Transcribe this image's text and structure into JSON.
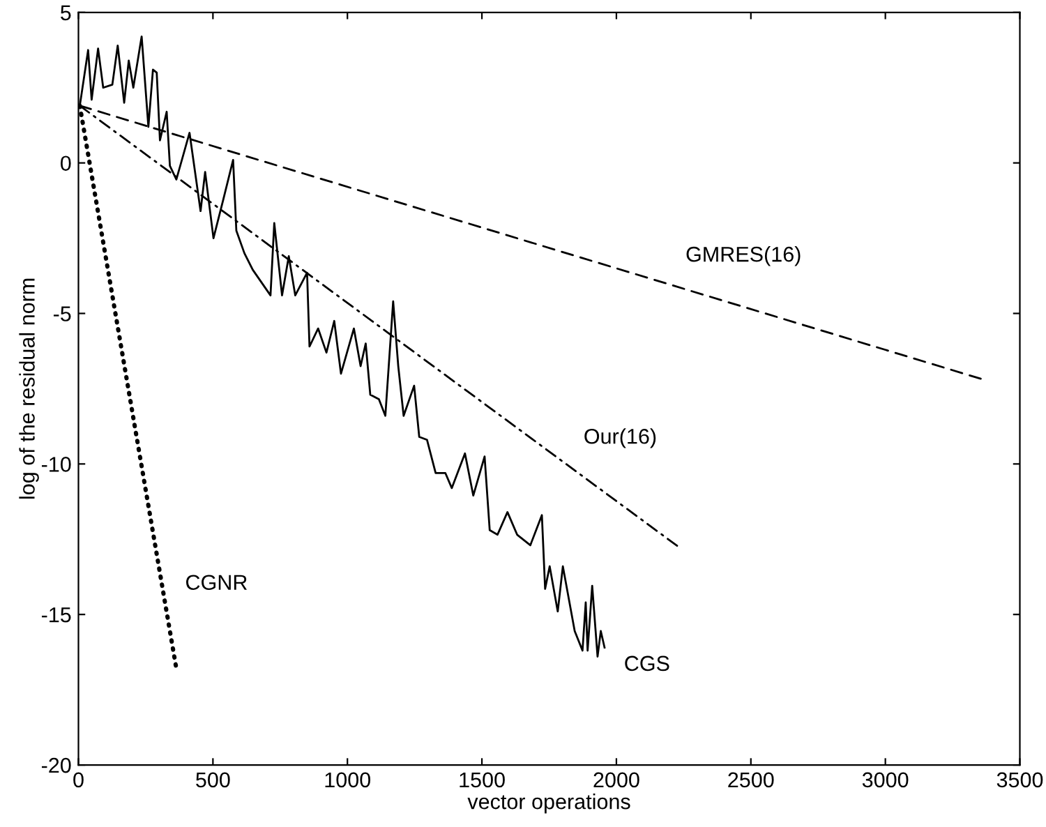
{
  "chart_data": {
    "type": "line",
    "xlabel": "vector operations",
    "ylabel": "log of the residual norm",
    "xlim": [
      0,
      3500
    ],
    "ylim": [
      -20,
      5
    ],
    "xticks": [
      0,
      500,
      1000,
      1500,
      2000,
      2500,
      3000,
      3500
    ],
    "yticks": [
      -20,
      -15,
      -10,
      -5,
      0,
      5
    ],
    "grid": false,
    "legend": false,
    "marker": "none",
    "series": [
      {
        "name": "GMRES(16)",
        "color": "#000000",
        "line_style": "dashed",
        "x": [
          5,
          3366
        ],
        "values": [
          1.9,
          -7.2
        ]
      },
      {
        "name": "Our(16)",
        "color": "#000000",
        "line_style": "dashdot",
        "x": [
          5,
          2238
        ],
        "values": [
          1.9,
          -12.8
        ]
      },
      {
        "name": "CGS",
        "color": "#000000",
        "line_style": "solid",
        "x": [
          5,
          36,
          49,
          73,
          92,
          126,
          146,
          170,
          187,
          204,
          235,
          260,
          277,
          291,
          303,
          328,
          340,
          364,
          413,
          454,
          471,
          502,
          539,
          575,
          587,
          617,
          648,
          714,
          728,
          757,
          782,
          806,
          850,
          859,
          891,
          922,
          951,
          976,
          1024,
          1049,
          1068,
          1085,
          1117,
          1141,
          1170,
          1189,
          1209,
          1248,
          1267,
          1296,
          1328,
          1364,
          1388,
          1437,
          1468,
          1510,
          1529,
          1558,
          1595,
          1631,
          1680,
          1723,
          1735,
          1752,
          1782,
          1801,
          1845,
          1874,
          1886,
          1893,
          1910,
          1930,
          1942,
          1956
        ],
        "values": [
          1.9,
          3.75,
          2.1,
          3.8,
          2.5,
          2.6,
          3.9,
          2.0,
          3.4,
          2.5,
          4.2,
          1.2,
          3.1,
          3.0,
          0.75,
          1.7,
          -0.1,
          -0.55,
          1.0,
          -1.6,
          -0.3,
          -2.5,
          -1.2,
          0.1,
          -2.25,
          -3.0,
          -3.55,
          -4.4,
          -2.0,
          -4.4,
          -3.1,
          -4.4,
          -3.65,
          -6.1,
          -5.5,
          -6.3,
          -5.25,
          -7.0,
          -5.5,
          -6.75,
          -6.0,
          -7.7,
          -7.85,
          -8.4,
          -4.6,
          -6.75,
          -8.4,
          -7.4,
          -9.1,
          -9.2,
          -10.3,
          -10.3,
          -10.8,
          -9.65,
          -11.05,
          -9.75,
          -12.2,
          -12.35,
          -11.6,
          -12.35,
          -12.7,
          -11.7,
          -14.15,
          -13.4,
          -14.9,
          -13.4,
          -15.55,
          -16.2,
          -14.6,
          -16.2,
          -14.05,
          -16.4,
          -15.55,
          -16.1
        ]
      },
      {
        "name": "CGNR",
        "color": "#000000",
        "line_style": "dotted",
        "x": [
          5,
          364
        ],
        "values": [
          1.9,
          -16.8
        ]
      }
    ]
  }
}
